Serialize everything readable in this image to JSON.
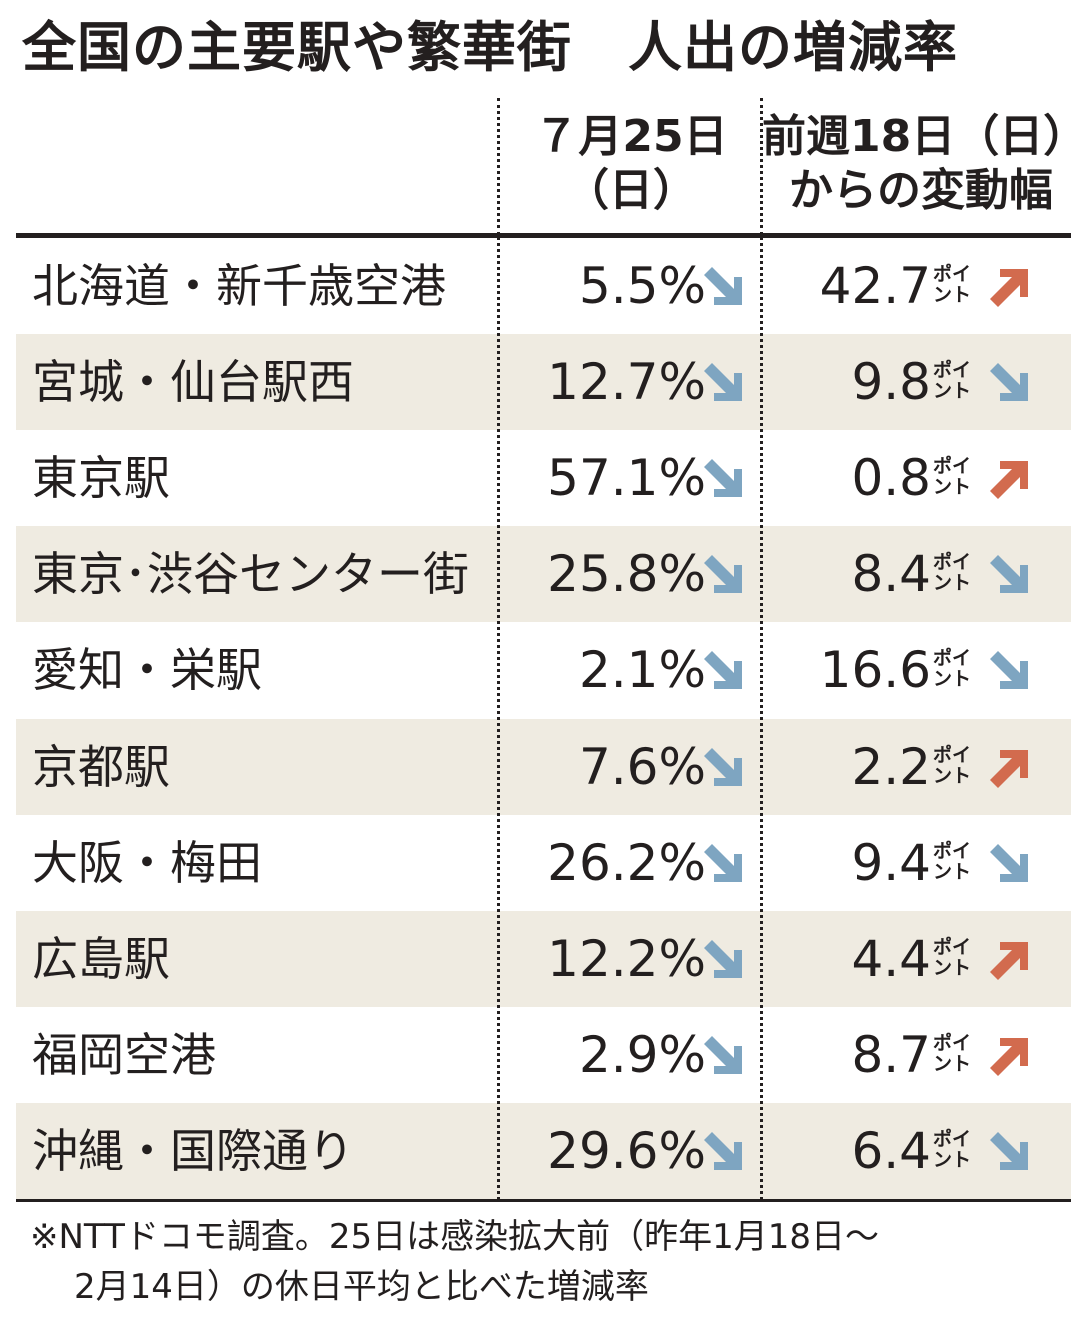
{
  "title_part1": "全国の主要駅や繁華街",
  "title_part2": "人出の増減率",
  "header": {
    "col2_line1": "７月25日",
    "col2_line2": "（日）",
    "col3_line1": "前週18日（日）",
    "col3_line2": "からの変動幅"
  },
  "unit_line1": "ポイ",
  "unit_line2": "ント",
  "colors": {
    "up": "#d26b4e",
    "down": "#7ea5c1",
    "shade": "#efebe1",
    "text": "#231f1f"
  },
  "chart_data": {
    "type": "table",
    "columns": [
      "",
      "７月25日（日）",
      "前週18日（日）からの変動幅"
    ],
    "rows": [
      {
        "name": "北海道・新千歳空港",
        "rate": "5.5%",
        "rate_dir": "down",
        "change": "42.7",
        "change_dir": "up"
      },
      {
        "name": "宮城・仙台駅西",
        "rate": "12.7%",
        "rate_dir": "down",
        "change": "9.8",
        "change_dir": "down"
      },
      {
        "name": "東京駅",
        "rate": "57.1%",
        "rate_dir": "down",
        "change": "0.8",
        "change_dir": "up"
      },
      {
        "name": "東京･渋谷センター街",
        "rate": "25.8%",
        "rate_dir": "down",
        "change": "8.4",
        "change_dir": "down"
      },
      {
        "name": "愛知・栄駅",
        "rate": "2.1%",
        "rate_dir": "down",
        "change": "16.6",
        "change_dir": "down"
      },
      {
        "name": "京都駅",
        "rate": "7.6%",
        "rate_dir": "down",
        "change": "2.2",
        "change_dir": "up"
      },
      {
        "name": "大阪・梅田",
        "rate": "26.2%",
        "rate_dir": "down",
        "change": "9.4",
        "change_dir": "down"
      },
      {
        "name": "広島駅",
        "rate": "12.2%",
        "rate_dir": "down",
        "change": "4.4",
        "change_dir": "up"
      },
      {
        "name": "福岡空港",
        "rate": "2.9%",
        "rate_dir": "down",
        "change": "8.7",
        "change_dir": "up"
      },
      {
        "name": "沖縄・国際通り",
        "rate": "29.6%",
        "rate_dir": "down",
        "change": "6.4",
        "change_dir": "down"
      }
    ]
  },
  "note_line1": "※NTTドコモ調査。25日は感染拡大前（昨年1月18日～",
  "note_line2": "2月14日）の休日平均と比べた増減率"
}
